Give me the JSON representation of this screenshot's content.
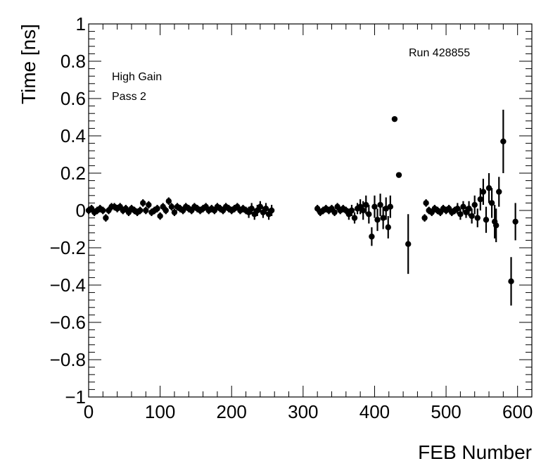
{
  "chart_data": {
    "type": "scatter",
    "xlabel": "FEB Number",
    "ylabel": "Time [ns]",
    "xlim": [
      0,
      620
    ],
    "ylim": [
      -1,
      1
    ],
    "x_ticks": [
      0,
      100,
      200,
      300,
      400,
      500,
      600
    ],
    "x_tick_labels": [
      "0",
      "100",
      "200",
      "300",
      "400",
      "500",
      "600"
    ],
    "y_ticks": [
      -1,
      -0.8,
      -0.6,
      -0.4,
      -0.2,
      0,
      0.2,
      0.4,
      0.6,
      0.8,
      1
    ],
    "y_tick_labels": [
      "−1",
      "−0.8",
      "−0.6",
      "−0.4",
      "−0.2",
      "0",
      "0.2",
      "0.4",
      "0.6",
      "0.8",
      "1"
    ],
    "annotations": [
      "Run 428855",
      "High Gain",
      "Pass 2"
    ],
    "grid": false,
    "marker_color": "#000000",
    "series": [
      {
        "points": [
          {
            "x": 0,
            "y": 0.0,
            "err": 0.02
          },
          {
            "x": 4,
            "y": 0.01,
            "err": 0.02
          },
          {
            "x": 8,
            "y": -0.01,
            "err": 0.02
          },
          {
            "x": 12,
            "y": 0.0,
            "err": 0.02
          },
          {
            "x": 16,
            "y": 0.01,
            "err": 0.02
          },
          {
            "x": 20,
            "y": 0.0,
            "err": 0.02
          },
          {
            "x": 24,
            "y": -0.04,
            "err": 0.02
          },
          {
            "x": 28,
            "y": 0.0,
            "err": 0.02
          },
          {
            "x": 32,
            "y": 0.02,
            "err": 0.02
          },
          {
            "x": 36,
            "y": 0.02,
            "err": 0.02
          },
          {
            "x": 40,
            "y": 0.01,
            "err": 0.02
          },
          {
            "x": 44,
            "y": 0.02,
            "err": 0.02
          },
          {
            "x": 48,
            "y": 0.0,
            "err": 0.02
          },
          {
            "x": 52,
            "y": 0.01,
            "err": 0.02
          },
          {
            "x": 56,
            "y": -0.01,
            "err": 0.02
          },
          {
            "x": 60,
            "y": 0.01,
            "err": 0.02
          },
          {
            "x": 64,
            "y": 0.0,
            "err": 0.02
          },
          {
            "x": 68,
            "y": -0.01,
            "err": 0.02
          },
          {
            "x": 72,
            "y": 0.0,
            "err": 0.02
          },
          {
            "x": 76,
            "y": 0.04,
            "err": 0.02
          },
          {
            "x": 80,
            "y": 0.0,
            "err": 0.02
          },
          {
            "x": 84,
            "y": 0.03,
            "err": 0.02
          },
          {
            "x": 88,
            "y": -0.01,
            "err": 0.02
          },
          {
            "x": 92,
            "y": 0.0,
            "err": 0.02
          },
          {
            "x": 96,
            "y": 0.01,
            "err": 0.02
          },
          {
            "x": 100,
            "y": -0.03,
            "err": 0.02
          },
          {
            "x": 104,
            "y": 0.02,
            "err": 0.02
          },
          {
            "x": 108,
            "y": 0.0,
            "err": 0.02
          },
          {
            "x": 112,
            "y": 0.05,
            "err": 0.02
          },
          {
            "x": 116,
            "y": 0.02,
            "err": 0.02
          },
          {
            "x": 120,
            "y": -0.01,
            "err": 0.02
          },
          {
            "x": 124,
            "y": 0.02,
            "err": 0.02
          },
          {
            "x": 128,
            "y": 0.01,
            "err": 0.02
          },
          {
            "x": 132,
            "y": 0.0,
            "err": 0.02
          },
          {
            "x": 136,
            "y": 0.02,
            "err": 0.02
          },
          {
            "x": 140,
            "y": 0.01,
            "err": 0.02
          },
          {
            "x": 144,
            "y": 0.0,
            "err": 0.02
          },
          {
            "x": 148,
            "y": 0.02,
            "err": 0.02
          },
          {
            "x": 152,
            "y": 0.01,
            "err": 0.02
          },
          {
            "x": 156,
            "y": 0.0,
            "err": 0.02
          },
          {
            "x": 160,
            "y": 0.01,
            "err": 0.02
          },
          {
            "x": 164,
            "y": 0.02,
            "err": 0.02
          },
          {
            "x": 168,
            "y": 0.0,
            "err": 0.02
          },
          {
            "x": 172,
            "y": 0.01,
            "err": 0.02
          },
          {
            "x": 176,
            "y": 0.0,
            "err": 0.02
          },
          {
            "x": 180,
            "y": 0.02,
            "err": 0.02
          },
          {
            "x": 184,
            "y": 0.01,
            "err": 0.02
          },
          {
            "x": 188,
            "y": 0.0,
            "err": 0.02
          },
          {
            "x": 192,
            "y": 0.02,
            "err": 0.02
          },
          {
            "x": 196,
            "y": 0.01,
            "err": 0.02
          },
          {
            "x": 200,
            "y": 0.0,
            "err": 0.02
          },
          {
            "x": 204,
            "y": 0.01,
            "err": 0.02
          },
          {
            "x": 208,
            "y": 0.02,
            "err": 0.02
          },
          {
            "x": 212,
            "y": 0.0,
            "err": 0.02
          },
          {
            "x": 216,
            "y": 0.01,
            "err": 0.02
          },
          {
            "x": 220,
            "y": 0.0,
            "err": 0.02
          },
          {
            "x": 224,
            "y": -0.01,
            "err": 0.03
          },
          {
            "x": 228,
            "y": 0.01,
            "err": 0.03
          },
          {
            "x": 232,
            "y": -0.02,
            "err": 0.03
          },
          {
            "x": 236,
            "y": 0.0,
            "err": 0.03
          },
          {
            "x": 240,
            "y": 0.02,
            "err": 0.03
          },
          {
            "x": 244,
            "y": -0.01,
            "err": 0.03
          },
          {
            "x": 248,
            "y": 0.01,
            "err": 0.03
          },
          {
            "x": 252,
            "y": -0.02,
            "err": 0.03
          },
          {
            "x": 256,
            "y": 0.0,
            "err": 0.03
          },
          {
            "x": 320,
            "y": 0.01,
            "err": 0.02
          },
          {
            "x": 324,
            "y": -0.01,
            "err": 0.02
          },
          {
            "x": 328,
            "y": 0.0,
            "err": 0.02
          },
          {
            "x": 332,
            "y": 0.01,
            "err": 0.02
          },
          {
            "x": 336,
            "y": 0.0,
            "err": 0.02
          },
          {
            "x": 340,
            "y": 0.01,
            "err": 0.02
          },
          {
            "x": 344,
            "y": -0.01,
            "err": 0.02
          },
          {
            "x": 348,
            "y": 0.02,
            "err": 0.02
          },
          {
            "x": 352,
            "y": 0.0,
            "err": 0.02
          },
          {
            "x": 356,
            "y": 0.01,
            "err": 0.02
          },
          {
            "x": 360,
            "y": 0.0,
            "err": 0.02
          },
          {
            "x": 364,
            "y": -0.02,
            "err": 0.03
          },
          {
            "x": 368,
            "y": 0.0,
            "err": 0.03
          },
          {
            "x": 372,
            "y": -0.04,
            "err": 0.03
          },
          {
            "x": 376,
            "y": 0.01,
            "err": 0.03
          },
          {
            "x": 380,
            "y": 0.02,
            "err": 0.04
          },
          {
            "x": 384,
            "y": 0.0,
            "err": 0.05
          },
          {
            "x": 388,
            "y": 0.03,
            "err": 0.05
          },
          {
            "x": 392,
            "y": -0.02,
            "err": 0.05
          },
          {
            "x": 396,
            "y": -0.14,
            "err": 0.05
          },
          {
            "x": 400,
            "y": 0.02,
            "err": 0.06
          },
          {
            "x": 404,
            "y": -0.05,
            "err": 0.06
          },
          {
            "x": 408,
            "y": 0.03,
            "err": 0.06
          },
          {
            "x": 412,
            "y": -0.04,
            "err": 0.06
          },
          {
            "x": 416,
            "y": 0.01,
            "err": 0.06
          },
          {
            "x": 419,
            "y": -0.09,
            "err": 0.06
          },
          {
            "x": 422,
            "y": 0.02,
            "err": 0.06
          },
          {
            "x": 428,
            "y": 0.49,
            "err": 0.0
          },
          {
            "x": 434,
            "y": 0.19,
            "err": 0.0
          },
          {
            "x": 447,
            "y": -0.18,
            "err": 0.16
          },
          {
            "x": 470,
            "y": -0.04,
            "err": 0.02
          },
          {
            "x": 472,
            "y": 0.04,
            "err": 0.02
          },
          {
            "x": 476,
            "y": 0.0,
            "err": 0.02
          },
          {
            "x": 480,
            "y": -0.01,
            "err": 0.02
          },
          {
            "x": 484,
            "y": 0.01,
            "err": 0.02
          },
          {
            "x": 488,
            "y": 0.0,
            "err": 0.02
          },
          {
            "x": 492,
            "y": -0.01,
            "err": 0.02
          },
          {
            "x": 496,
            "y": 0.01,
            "err": 0.02
          },
          {
            "x": 500,
            "y": 0.0,
            "err": 0.02
          },
          {
            "x": 504,
            "y": 0.01,
            "err": 0.02
          },
          {
            "x": 508,
            "y": -0.01,
            "err": 0.02
          },
          {
            "x": 512,
            "y": 0.0,
            "err": 0.02
          },
          {
            "x": 516,
            "y": 0.01,
            "err": 0.03
          },
          {
            "x": 520,
            "y": -0.02,
            "err": 0.03
          },
          {
            "x": 524,
            "y": 0.02,
            "err": 0.03
          },
          {
            "x": 528,
            "y": -0.01,
            "err": 0.03
          },
          {
            "x": 532,
            "y": 0.01,
            "err": 0.04
          },
          {
            "x": 536,
            "y": -0.03,
            "err": 0.04
          },
          {
            "x": 540,
            "y": 0.03,
            "err": 0.05
          },
          {
            "x": 544,
            "y": -0.04,
            "err": 0.05
          },
          {
            "x": 548,
            "y": 0.06,
            "err": 0.06
          },
          {
            "x": 552,
            "y": 0.1,
            "err": 0.07
          },
          {
            "x": 556,
            "y": -0.05,
            "err": 0.07
          },
          {
            "x": 560,
            "y": 0.12,
            "err": 0.08
          },
          {
            "x": 564,
            "y": 0.04,
            "err": 0.08
          },
          {
            "x": 568,
            "y": -0.06,
            "err": 0.09
          },
          {
            "x": 570,
            "y": -0.08,
            "err": 0.09
          },
          {
            "x": 574,
            "y": 0.1,
            "err": 0.08
          },
          {
            "x": 580,
            "y": 0.37,
            "err": 0.17
          },
          {
            "x": 591,
            "y": -0.38,
            "err": 0.13
          },
          {
            "x": 597,
            "y": -0.06,
            "err": 0.1
          }
        ]
      }
    ]
  }
}
